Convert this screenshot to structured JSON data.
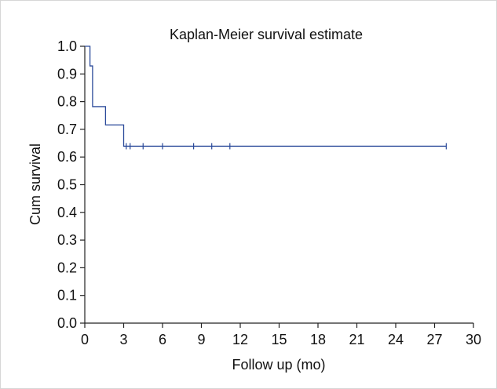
{
  "chart_data": {
    "type": "line",
    "title": "Kaplan-Meier survival estimate",
    "xlabel": "Follow up (mo)",
    "ylabel": "Cum survival",
    "xlim": [
      0,
      30
    ],
    "ylim": [
      0.0,
      1.0
    ],
    "xticks": [
      0,
      3,
      6,
      9,
      12,
      15,
      18,
      21,
      24,
      27,
      30
    ],
    "yticks": [
      "0.0",
      "0.1",
      "0.2",
      "0.3",
      "0.4",
      "0.5",
      "0.6",
      "0.7",
      "0.8",
      "0.9",
      "1.0"
    ],
    "grid": false,
    "series": [
      {
        "color": "#2b4a9a",
        "step_points": [
          {
            "x": 0,
            "y": 1.0
          },
          {
            "x": 0.4,
            "y": 0.929
          },
          {
            "x": 0.6,
            "y": 0.782
          },
          {
            "x": 1.6,
            "y": 0.716
          },
          {
            "x": 3.0,
            "y": 0.639
          },
          {
            "x": 27.9,
            "y": 0.639
          }
        ],
        "censored_x": [
          3.2,
          3.5,
          4.5,
          6.0,
          8.4,
          9.8,
          11.2,
          27.9
        ]
      }
    ]
  }
}
